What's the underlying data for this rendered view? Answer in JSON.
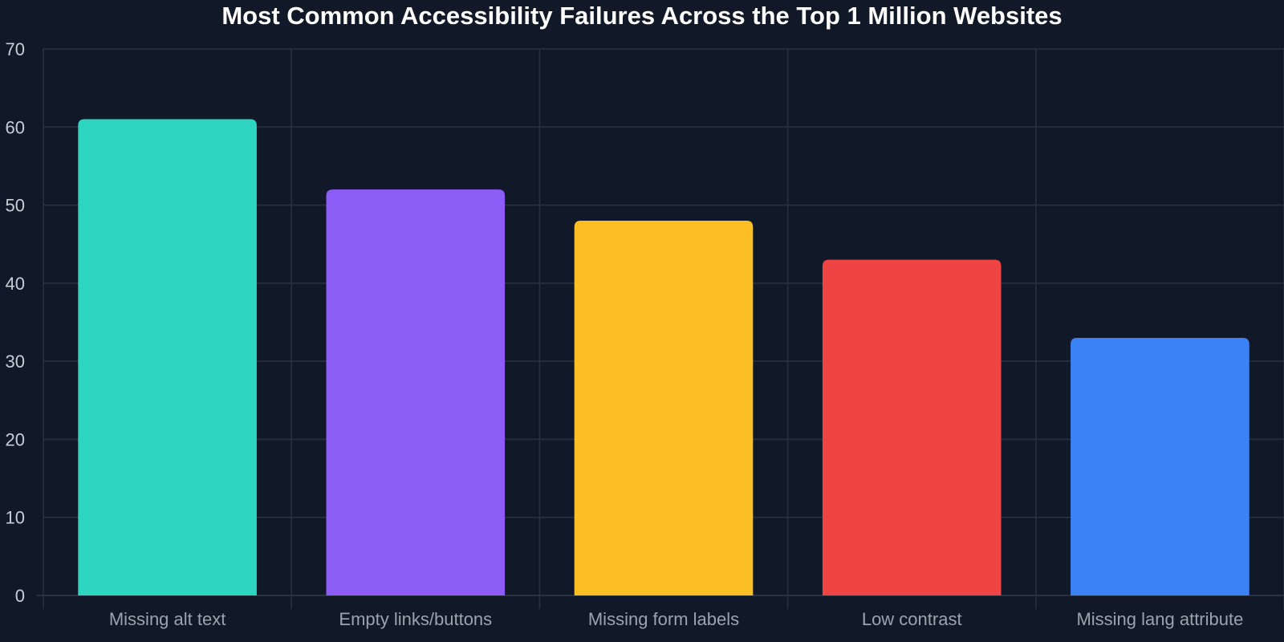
{
  "chart_data": {
    "type": "bar",
    "title": "Most Common Accessibility Failures Across the Top 1 Million Websites",
    "xlabel": "",
    "ylabel": "",
    "categories": [
      "Missing alt text",
      "Empty links/buttons",
      "Missing form labels",
      "Low contrast",
      "Missing lang attribute"
    ],
    "values": [
      61,
      52,
      48,
      43,
      33
    ],
    "colors": [
      "#2dd4bf",
      "#8b5cf6",
      "#fbbf24",
      "#ef4444",
      "#3b82f6"
    ],
    "ylim": [
      0,
      70
    ],
    "yticks": [
      0,
      10,
      20,
      30,
      40,
      50,
      60,
      70
    ],
    "grid": true,
    "legend": "none"
  },
  "theme": {
    "background": "#111827",
    "grid_color": "#2a3140"
  }
}
